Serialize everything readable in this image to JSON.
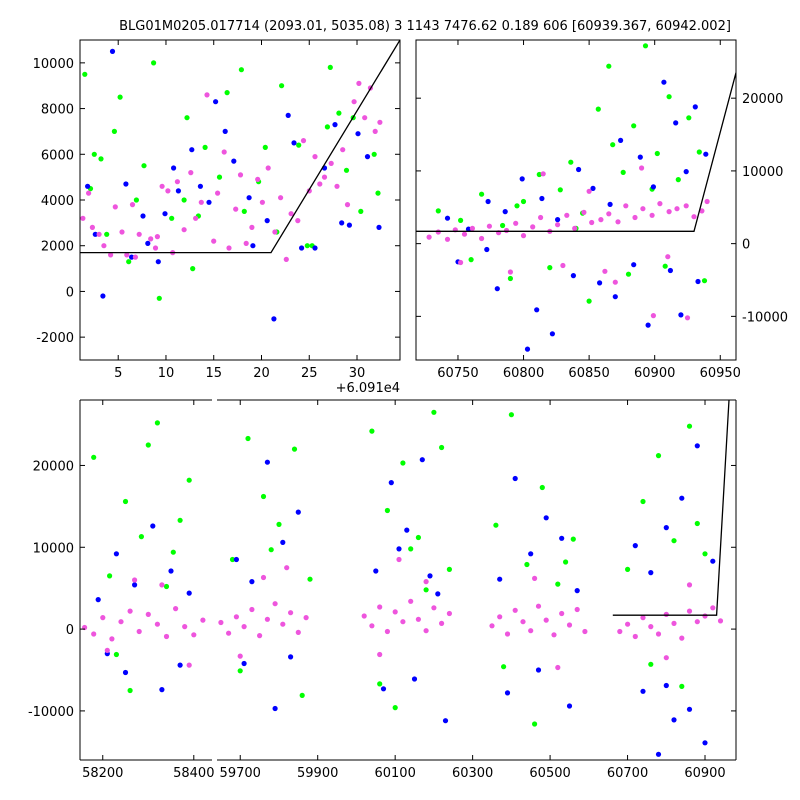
{
  "title": "BLG01M0205.017714 (2093.01, 5035.08)   3 1143 7476.62 0.189 606 [60939.367, 60942.002]",
  "colors": {
    "green": "#00ff00",
    "blue": "#0000ff",
    "pink": "#ee55dd",
    "line": "#000000"
  },
  "chart_data": [
    {
      "type": "scatter",
      "panel": "top-left",
      "xlim": [
        1,
        34.5
      ],
      "ylim": [
        -3000,
        11000
      ],
      "x_offset_label": "+6.091e4",
      "xticks": [
        5,
        10,
        15,
        20,
        25,
        30
      ],
      "yticks": [
        -2000,
        0,
        2000,
        4000,
        6000,
        8000,
        10000
      ],
      "model_line": {
        "x": [
          1,
          19.3,
          21,
          34.5
        ],
        "y": [
          1700,
          1700,
          1700,
          11000
        ]
      },
      "series": [
        {
          "color": "green",
          "x": [
            1.5,
            2.5,
            3.8,
            5.2,
            6.9,
            8.7,
            10.6,
            12.2,
            14.1,
            16.4,
            18.2,
            19.7,
            22.1,
            23.9,
            25.3,
            27.2,
            28.9,
            30.4,
            31.8,
            2.1,
            4.6,
            7.7,
            11.9,
            15.6,
            20.4,
            24.8,
            29.6,
            13.4,
            26.9,
            9.3,
            17.9,
            3.2,
            32.2,
            21.6,
            6.1,
            12.8,
            28.1
          ],
          "y": [
            9500,
            6000,
            2500,
            8500,
            4000,
            10000,
            3200,
            7600,
            6300,
            8700,
            3500,
            4800,
            9000,
            6400,
            2000,
            9800,
            5300,
            3500,
            6000,
            4500,
            7000,
            5500,
            4000,
            5000,
            6300,
            2000,
            7600,
            3300,
            7200,
            -300,
            9700,
            5800,
            4300,
            2600,
            1300,
            1000,
            7800
          ]
        },
        {
          "color": "blue",
          "x": [
            2.6,
            4.4,
            5.8,
            7.6,
            9.2,
            10.8,
            12.7,
            14.5,
            16.2,
            18.7,
            20.6,
            22.8,
            24.2,
            26.6,
            28.4,
            30.1,
            32.3,
            3.4,
            8.1,
            13.6,
            19.1,
            25.6,
            31.1,
            11.3,
            17.1,
            23.4,
            29.2,
            6.4,
            15.2,
            27.7,
            1.8,
            21.3,
            9.9
          ],
          "y": [
            2500,
            10500,
            4700,
            3300,
            1300,
            5400,
            6200,
            3900,
            7000,
            4100,
            3100,
            7700,
            1900,
            5400,
            3000,
            6900,
            2800,
            -200,
            2100,
            4600,
            2000,
            1900,
            5900,
            4400,
            5700,
            6500,
            2900,
            1500,
            8300,
            7300,
            4600,
            -1200,
            3400
          ]
        },
        {
          "color": "pink",
          "x": [
            1.3,
            2.3,
            3.5,
            4.7,
            5.9,
            7.2,
            8.4,
            9.6,
            10.7,
            11.9,
            13.1,
            14.3,
            15.4,
            16.6,
            17.8,
            19.0,
            20.1,
            21.4,
            22.6,
            23.8,
            25.0,
            26.1,
            27.3,
            28.5,
            29.7,
            30.8,
            31.9,
            1.9,
            3.0,
            4.2,
            6.5,
            8.9,
            11.2,
            13.7,
            16.1,
            18.4,
            20.7,
            23.1,
            25.6,
            27.9,
            30.2,
            32.4,
            5.4,
            10.2,
            15.0,
            19.6,
            24.4,
            29.0,
            12.6,
            22.0,
            6.8,
            17.3,
            26.6,
            31.4,
            9.1
          ],
          "y": [
            3200,
            2800,
            2000,
            3700,
            1600,
            2500,
            2300,
            4600,
            1700,
            2700,
            3200,
            8600,
            4300,
            1900,
            5100,
            2800,
            3900,
            2600,
            1400,
            3100,
            4400,
            4700,
            5600,
            6200,
            8300,
            7600,
            7000,
            4300,
            2500,
            1600,
            3800,
            1900,
            4800,
            3900,
            6100,
            2100,
            5400,
            3400,
            5900,
            4600,
            9100,
            7400,
            2600,
            4400,
            2200,
            4900,
            6600,
            3800,
            5200,
            4100,
            1500,
            3600,
            5000,
            8900,
            2400
          ]
        }
      ]
    },
    {
      "type": "scatter",
      "panel": "top-right",
      "xlim": [
        60718,
        60962
      ],
      "ylim": [
        -16000,
        28000
      ],
      "xticks": [
        60750,
        60800,
        60850,
        60900,
        60950
      ],
      "yticks": [
        -10000,
        0,
        10000,
        20000
      ],
      "model_line": {
        "x": [
          60718,
          60930,
          60962
        ],
        "y": [
          1700,
          1700,
          23500
        ]
      },
      "series": [
        {
          "color": "green",
          "x": [
            60735,
            60752,
            60768,
            60784,
            60795,
            60812,
            60828,
            60836,
            60845,
            60857,
            60868,
            60876,
            60884,
            60893,
            60902,
            60911,
            60918,
            60926,
            60934,
            60760,
            60790,
            60820,
            60850,
            60880,
            60908,
            60938,
            60800,
            60865,
            60898,
            60840
          ],
          "y": [
            4500,
            3200,
            6800,
            2500,
            5200,
            9500,
            7400,
            11200,
            4200,
            18500,
            13600,
            9800,
            16200,
            27200,
            12400,
            20200,
            8800,
            17300,
            12600,
            -2200,
            -4800,
            -3300,
            -7900,
            -4200,
            -3100,
            -5100,
            5800,
            24400,
            7500,
            2100
          ]
        },
        {
          "color": "blue",
          "x": [
            60742,
            60758,
            60773,
            60786,
            60799,
            60814,
            60826,
            60842,
            60853,
            60866,
            60874,
            60889,
            60899,
            60907,
            60916,
            60924,
            60931,
            60939,
            60750,
            60780,
            60810,
            60838,
            60870,
            60895,
            60920,
            60803,
            60858,
            60884,
            60912,
            60933,
            60822,
            60772
          ],
          "y": [
            3500,
            2000,
            5800,
            4400,
            8900,
            6200,
            3300,
            10200,
            7600,
            5400,
            14200,
            11900,
            7800,
            22200,
            16600,
            9900,
            18800,
            12300,
            -2500,
            -6200,
            -9100,
            -4400,
            -7300,
            -11200,
            -9800,
            -14500,
            -5400,
            -2900,
            -3700,
            -5200,
            -12400,
            -800
          ]
        },
        {
          "color": "pink",
          "x": [
            60728,
            60735,
            60742,
            60748,
            60755,
            60761,
            60768,
            60774,
            60781,
            60787,
            60794,
            60800,
            60807,
            60813,
            60820,
            60826,
            60833,
            60839,
            60846,
            60852,
            60859,
            60865,
            60872,
            60878,
            60885,
            60891,
            60898,
            60904,
            60911,
            60917,
            60924,
            60930,
            60936,
            60940,
            60752,
            60790,
            60830,
            60870,
            60910,
            60850,
            60890,
            60815,
            60925,
            60862,
            60899
          ],
          "y": [
            900,
            1600,
            600,
            1900,
            1300,
            2100,
            700,
            2400,
            1500,
            1800,
            2800,
            1100,
            2300,
            3600,
            1700,
            2600,
            3900,
            2100,
            4300,
            2900,
            3300,
            4100,
            3000,
            5200,
            3600,
            4800,
            3900,
            5500,
            4400,
            4800,
            5200,
            3700,
            4500,
            5800,
            -2600,
            -3900,
            -3000,
            -5300,
            -1800,
            7200,
            10400,
            9600,
            -10200,
            -3800,
            -9900
          ]
        }
      ]
    },
    {
      "type": "scatter",
      "panel": "bottom",
      "broken_x_axis": true,
      "segments": [
        {
          "xlim": [
            58150,
            58440
          ],
          "xticks": [
            58200,
            58400
          ]
        },
        {
          "xlim": [
            59640,
            60980
          ],
          "xticks": [
            59700,
            59900,
            60100,
            60300,
            60500,
            60700,
            60900
          ]
        }
      ],
      "ylim": [
        -16000,
        28000
      ],
      "yticks": [
        -10000,
        0,
        10000,
        20000
      ],
      "model_line": {
        "x": [
          60662,
          60930,
          60962
        ],
        "y": [
          1700,
          1700,
          28000
        ]
      },
      "series": [
        {
          "color": "green",
          "x": [
            58180,
            58215,
            58250,
            58285,
            58320,
            58355,
            58390,
            58230,
            58300,
            58370,
            58260,
            58340,
            59680,
            59720,
            59760,
            59800,
            59840,
            59880,
            59700,
            59780,
            59860,
            60040,
            60080,
            60120,
            60160,
            60200,
            60240,
            60060,
            60140,
            60220,
            60100,
            60180,
            60360,
            60400,
            60440,
            60480,
            60520,
            60560,
            60380,
            60460,
            60540,
            60700,
            60740,
            60780,
            60820,
            60860,
            60900,
            60760,
            60840,
            60880
          ],
          "y": [
            21000,
            6500,
            15600,
            11300,
            25200,
            9400,
            18200,
            -3100,
            22500,
            13300,
            -7500,
            5200,
            8500,
            23300,
            16200,
            12800,
            22000,
            6100,
            -5100,
            9700,
            -8100,
            24200,
            14500,
            20300,
            11200,
            26500,
            7300,
            -6700,
            9800,
            22200,
            -9600,
            4800,
            12700,
            26200,
            7900,
            17300,
            5500,
            11000,
            -4600,
            -11600,
            8200,
            7300,
            15600,
            21200,
            10800,
            24800,
            9200,
            -4300,
            -7000,
            12900
          ]
        },
        {
          "color": "blue",
          "x": [
            58190,
            58230,
            58270,
            58310,
            58350,
            58390,
            58250,
            58330,
            58210,
            58370,
            59690,
            59730,
            59770,
            59810,
            59850,
            59710,
            59790,
            59830,
            60050,
            60090,
            60130,
            60170,
            60210,
            60070,
            60150,
            60230,
            60110,
            60190,
            60370,
            60410,
            60450,
            60490,
            60530,
            60570,
            60390,
            60470,
            60550,
            60720,
            60760,
            60800,
            60840,
            60880,
            60920,
            60740,
            60780,
            60820,
            60860,
            60900,
            60800
          ],
          "y": [
            3600,
            9200,
            5400,
            12600,
            7100,
            4400,
            -5300,
            -7400,
            -3000,
            -4400,
            8500,
            5800,
            20400,
            10600,
            14300,
            -4200,
            -9700,
            -3400,
            7100,
            17900,
            12100,
            20700,
            4300,
            -7300,
            -6100,
            -11200,
            9800,
            6500,
            6100,
            18400,
            9200,
            13600,
            11100,
            4700,
            -7800,
            -5000,
            -9400,
            10200,
            6900,
            12400,
            16000,
            22400,
            8300,
            -7600,
            -15300,
            -11100,
            -9800,
            -13900,
            -6900
          ]
        },
        {
          "color": "pink",
          "x": [
            58160,
            58180,
            58200,
            58220,
            58240,
            58260,
            58280,
            58300,
            58320,
            58340,
            58360,
            58380,
            58400,
            58420,
            58270,
            58330,
            58210,
            58390,
            59650,
            59670,
            59690,
            59710,
            59730,
            59750,
            59770,
            59790,
            59810,
            59830,
            59850,
            59870,
            59760,
            59820,
            59700,
            60020,
            60040,
            60060,
            60080,
            60100,
            60120,
            60140,
            60160,
            60180,
            60200,
            60220,
            60240,
            60110,
            60180,
            60060,
            60350,
            60370,
            60390,
            60410,
            60430,
            60450,
            60470,
            60490,
            60510,
            60530,
            60550,
            60570,
            60590,
            60460,
            60520,
            60680,
            60700,
            60720,
            60740,
            60760,
            60780,
            60800,
            60820,
            60840,
            60860,
            60880,
            60900,
            60920,
            60940,
            60860,
            60800
          ],
          "y": [
            200,
            -600,
            1400,
            -1200,
            900,
            2200,
            -300,
            1800,
            600,
            -900,
            2500,
            300,
            -700,
            1100,
            6000,
            5400,
            -2600,
            -4400,
            800,
            -500,
            1500,
            300,
            2400,
            -800,
            1200,
            3100,
            600,
            2000,
            -400,
            1400,
            6300,
            7500,
            -3300,
            1600,
            400,
            2700,
            -300,
            2100,
            900,
            3400,
            1200,
            -200,
            2600,
            700,
            1900,
            8500,
            5800,
            -3100,
            400,
            1500,
            -600,
            2300,
            900,
            -200,
            2800,
            1100,
            -700,
            1900,
            500,
            2400,
            -300,
            6200,
            -4700,
            -300,
            600,
            -900,
            1400,
            300,
            -600,
            1800,
            700,
            -1100,
            2200,
            900,
            1600,
            2600,
            1000,
            5400,
            -3500
          ]
        }
      ]
    }
  ]
}
